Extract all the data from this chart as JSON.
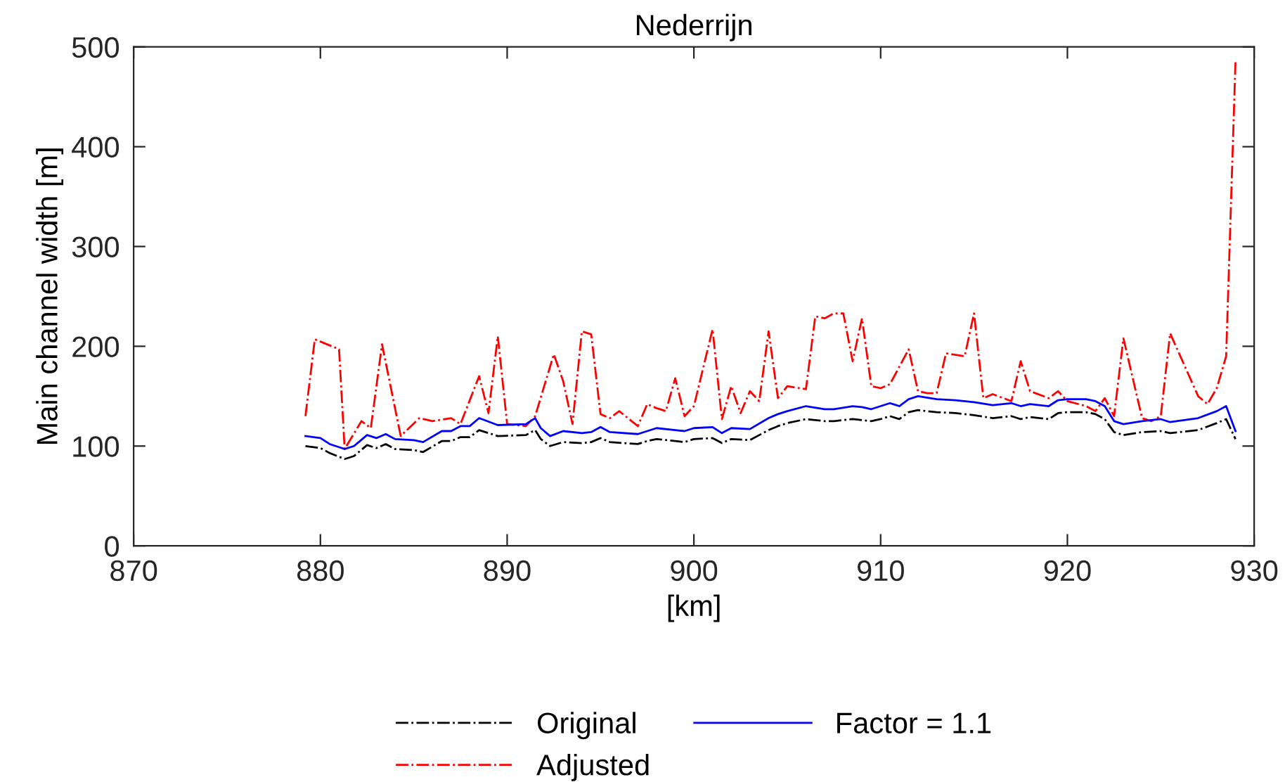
{
  "chart_data": {
    "type": "line",
    "title": "Nederrijn",
    "xlabel": "[km]",
    "ylabel": "Main channel width [m]",
    "xlim": [
      870,
      930
    ],
    "xticks": [
      870,
      880,
      890,
      900,
      910,
      920,
      930
    ],
    "ylim": [
      0,
      500
    ],
    "yticks": [
      0,
      100,
      200,
      300,
      400,
      500
    ],
    "grid": false,
    "legend": "bottom",
    "marker": "none",
    "series": [
      {
        "name": "Original",
        "color": "#000000",
        "line_style": "dashdot",
        "x": [
          879.2,
          880,
          880.5,
          881.3,
          881.8,
          882.5,
          883,
          883.5,
          884,
          885,
          885.5,
          886.5,
          887,
          887.5,
          888,
          888.5,
          889.5,
          891,
          891.5,
          891.8,
          892.3,
          893,
          894,
          894.5,
          895,
          895.5,
          897,
          897.5,
          898,
          899,
          899.5,
          900,
          901,
          901.5,
          902,
          903,
          904,
          904.5,
          905,
          906,
          907,
          907.5,
          908.5,
          909,
          909.5,
          910,
          910.5,
          911,
          911.5,
          912,
          913,
          914,
          915,
          916,
          917,
          917.5,
          918,
          919,
          919.5,
          920,
          921,
          921.5,
          922,
          922.5,
          923,
          924,
          925,
          925.5,
          927,
          928,
          928.5,
          929
        ],
        "values": [
          100,
          98,
          93,
          87,
          90,
          101,
          98,
          102,
          97,
          96,
          94,
          105,
          105,
          109,
          109,
          116,
          110,
          111,
          116,
          107,
          100,
          104,
          103,
          104,
          108,
          104,
          102,
          105,
          107,
          105,
          104,
          107,
          108,
          103,
          107,
          106,
          116,
          120,
          123,
          127,
          125,
          125,
          127,
          126,
          125,
          127,
          130,
          127,
          134,
          136,
          134,
          133,
          131,
          128,
          130,
          127,
          129,
          127,
          133,
          134,
          134,
          132,
          127,
          114,
          111,
          114,
          115,
          113,
          116,
          123,
          127,
          107
        ]
      },
      {
        "name": "Adjusted",
        "color": "#ff0000",
        "line_style": "dashdot",
        "x": [
          879.2,
          879.7,
          881,
          881.3,
          882.2,
          882.7,
          883.3,
          884.3,
          885.3,
          886,
          887,
          887.5,
          888.5,
          889,
          889.5,
          890,
          891,
          891.5,
          892.5,
          893,
          893.5,
          894,
          894.5,
          895,
          895.5,
          896,
          897,
          897.5,
          898,
          898.5,
          899,
          899.5,
          900,
          901,
          901.5,
          902,
          902.5,
          903,
          903.5,
          904,
          904.5,
          905,
          906,
          906.5,
          907,
          907.5,
          908,
          908.5,
          909,
          909.5,
          910,
          910.5,
          911.5,
          912,
          912.5,
          913,
          913.5,
          914.5,
          915,
          915.5,
          916,
          917,
          917.5,
          918,
          919,
          919.5,
          920,
          921,
          921.5,
          922,
          922.5,
          923,
          924,
          924.5,
          925,
          925.5,
          927,
          927.5,
          928,
          928.5,
          929
        ],
        "values": [
          130,
          207,
          197,
          97,
          125,
          118,
          202,
          110,
          128,
          125,
          128,
          122,
          170,
          133,
          210,
          122,
          120,
          130,
          192,
          165,
          122,
          215,
          212,
          132,
          128,
          135,
          120,
          142,
          138,
          135,
          168,
          130,
          140,
          217,
          127,
          160,
          133,
          155,
          145,
          215,
          148,
          160,
          157,
          230,
          228,
          233,
          233,
          185,
          228,
          160,
          158,
          162,
          197,
          155,
          153,
          153,
          193,
          190,
          233,
          148,
          152,
          145,
          185,
          155,
          148,
          155,
          145,
          140,
          135,
          148,
          130,
          208,
          128,
          125,
          130,
          213,
          150,
          142,
          158,
          190,
          485
        ]
      },
      {
        "name": "Factor = 1.1",
        "color": "#0000ff",
        "line_style": "solid",
        "x": [
          879.2,
          880,
          880.5,
          881.3,
          881.8,
          882.5,
          883,
          883.5,
          884,
          885,
          885.5,
          886.5,
          887,
          887.5,
          888,
          888.5,
          889.5,
          891,
          891.5,
          891.8,
          892.3,
          893,
          894,
          894.5,
          895,
          895.5,
          897,
          897.5,
          898,
          899,
          899.5,
          900,
          901,
          901.5,
          902,
          903,
          904,
          904.5,
          905,
          906,
          907,
          907.5,
          908.5,
          909,
          909.5,
          910,
          910.5,
          911,
          911.5,
          912,
          913,
          914,
          915,
          916,
          917,
          917.5,
          918,
          919,
          919.5,
          920,
          921,
          921.5,
          922,
          922.5,
          923,
          924,
          925,
          925.5,
          927,
          928,
          928.5,
          929
        ],
        "values": [
          110,
          108,
          102,
          97,
          100,
          111,
          108,
          112,
          107,
          106,
          104,
          115,
          115,
          120,
          120,
          128,
          121,
          122,
          128,
          118,
          110,
          115,
          113,
          114,
          119,
          114,
          112,
          115,
          118,
          116,
          115,
          118,
          119,
          113,
          118,
          117,
          128,
          132,
          135,
          140,
          137,
          137,
          140,
          139,
          137,
          140,
          143,
          140,
          147,
          150,
          147,
          146,
          144,
          141,
          143,
          140,
          142,
          140,
          146,
          147,
          147,
          145,
          140,
          125,
          122,
          125,
          127,
          124,
          128,
          135,
          140,
          115
        ]
      }
    ]
  }
}
